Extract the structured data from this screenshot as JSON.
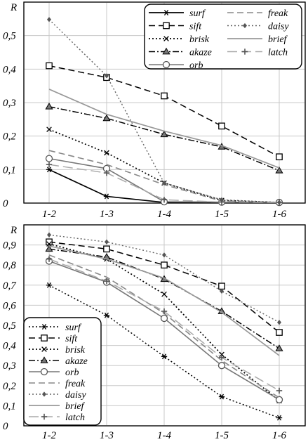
{
  "chart_data": [
    {
      "type": "line",
      "ylabel": "R",
      "categories": [
        "1-2",
        "1-3",
        "1-4",
        "1-5",
        "1-6"
      ],
      "ylim": [
        0,
        0.6
      ],
      "yticks": [
        "0",
        "0,1",
        "0,2",
        "0,3",
        "0,4",
        "0,5"
      ],
      "grid": true,
      "legend_position": "top-right",
      "legend_columns": 2,
      "series": [
        {
          "name": "surf",
          "values": [
            0.1,
            0.02,
            0.002,
            0.002,
            0.002
          ],
          "color": "#000000",
          "dash": "solid",
          "width": 1.7,
          "marker": "asterisk"
        },
        {
          "name": "sift",
          "values": [
            0.41,
            0.375,
            0.32,
            0.23,
            0.138
          ],
          "color": "#000000",
          "dash": "dashed",
          "width": 1.5,
          "marker": "square"
        },
        {
          "name": "brisk",
          "values": [
            0.22,
            0.15,
            0.06,
            0.008,
            0.002
          ],
          "color": "#000000",
          "dash": "dotted",
          "width": 1.7,
          "marker": "x"
        },
        {
          "name": "akaze",
          "values": [
            0.288,
            0.253,
            0.205,
            0.168,
            0.097
          ],
          "color": "#000000",
          "dash": "dashdot",
          "width": 1.5,
          "marker": "triangle"
        },
        {
          "name": "orb",
          "values": [
            0.133,
            0.103,
            0.004,
            0.003,
            0.002
          ],
          "color": "#777777",
          "dash": "solid",
          "width": 1.6,
          "marker": "circle"
        },
        {
          "name": "freak",
          "values": [
            0.157,
            0.115,
            0.055,
            0.006,
            0.002
          ],
          "color": "#888888",
          "dash": "dashed",
          "width": 1.6,
          "marker": "none"
        },
        {
          "name": "daisy",
          "values": [
            0.548,
            0.38,
            0.06,
            0.01,
            0.002
          ],
          "color": "#666666",
          "dash": "dotted",
          "width": 1.4,
          "marker": "diamond"
        },
        {
          "name": "brief",
          "values": [
            0.34,
            0.265,
            0.215,
            0.172,
            0.105
          ],
          "color": "#999999",
          "dash": "solid",
          "width": 1.7,
          "marker": "none"
        },
        {
          "name": "latch",
          "values": [
            0.115,
            0.09,
            0.01,
            0.003,
            0.002
          ],
          "color": "#aaaaaa",
          "dash": "longdash",
          "width": 1.5,
          "marker": "plus"
        }
      ]
    },
    {
      "type": "line",
      "ylabel": "R",
      "categories": [
        "1-2",
        "1-3",
        "1-4",
        "1-5",
        "1-6"
      ],
      "ylim": [
        0,
        1.0
      ],
      "yticks": [
        "0",
        "0,1",
        "0,2",
        "0,3",
        "0,4",
        "0,5",
        "0,6",
        "0,7",
        "0,8",
        "0,9"
      ],
      "grid": true,
      "legend_position": "bottom-left",
      "legend_columns": 1,
      "series": [
        {
          "name": "surf",
          "values": [
            0.7,
            0.55,
            0.345,
            0.145,
            0.04
          ],
          "color": "#000000",
          "dash": "dotted",
          "width": 1.5,
          "marker": "asterisk"
        },
        {
          "name": "sift",
          "values": [
            0.915,
            0.88,
            0.8,
            0.695,
            0.465
          ],
          "color": "#000000",
          "dash": "dashed",
          "width": 1.5,
          "marker": "square"
        },
        {
          "name": "brisk",
          "values": [
            0.905,
            0.83,
            0.655,
            0.355,
            0.125
          ],
          "color": "#000000",
          "dash": "dotted",
          "width": 1.7,
          "marker": "x"
        },
        {
          "name": "akaze",
          "values": [
            0.88,
            0.84,
            0.73,
            0.57,
            0.385
          ],
          "color": "#000000",
          "dash": "dashdot",
          "width": 1.5,
          "marker": "triangle"
        },
        {
          "name": "orb",
          "values": [
            0.82,
            0.715,
            0.535,
            0.3,
            0.13
          ],
          "color": "#777777",
          "dash": "solid",
          "width": 1.6,
          "marker": "circle"
        },
        {
          "name": "freak",
          "values": [
            0.85,
            0.74,
            0.56,
            0.325,
            0.14
          ],
          "color": "#888888",
          "dash": "dashed",
          "width": 1.6,
          "marker": "none"
        },
        {
          "name": "daisy",
          "values": [
            0.95,
            0.915,
            0.85,
            0.67,
            0.515
          ],
          "color": "#666666",
          "dash": "dotted",
          "width": 1.4,
          "marker": "diamond"
        },
        {
          "name": "brief",
          "values": [
            0.895,
            0.83,
            0.735,
            0.565,
            0.35
          ],
          "color": "#999999",
          "dash": "solid",
          "width": 1.7,
          "marker": "none"
        },
        {
          "name": "latch",
          "values": [
            0.83,
            0.72,
            0.57,
            0.34,
            0.175
          ],
          "color": "#aaaaaa",
          "dash": "longdash",
          "width": 1.5,
          "marker": "plus"
        }
      ]
    }
  ]
}
